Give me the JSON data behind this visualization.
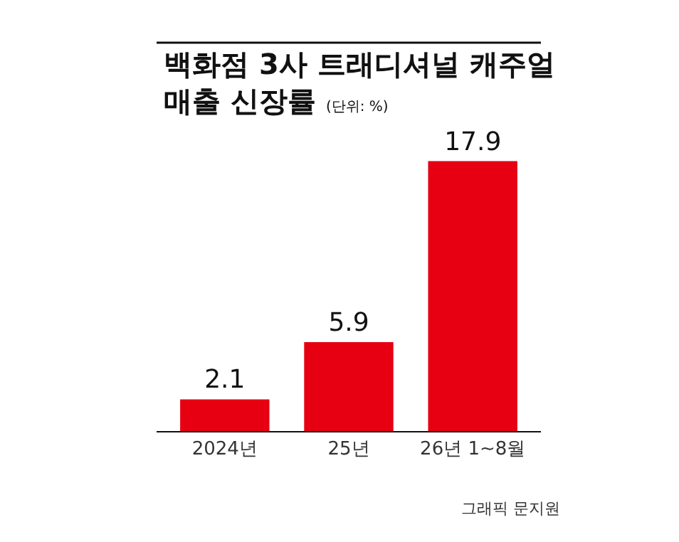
{
  "chart_data": {
    "type": "bar",
    "title": "백화점 3사 트래디셔널 캐주얼\n매출 신장률",
    "subtitle": "(단위: %)",
    "categories": [
      "2024년",
      "25년",
      "26년 1~8월"
    ],
    "values": [
      2.1,
      5.9,
      17.9
    ],
    "color": "#e60012",
    "data_labels": true,
    "legend": false,
    "annotations": [
      "그래픽 문지원"
    ]
  }
}
